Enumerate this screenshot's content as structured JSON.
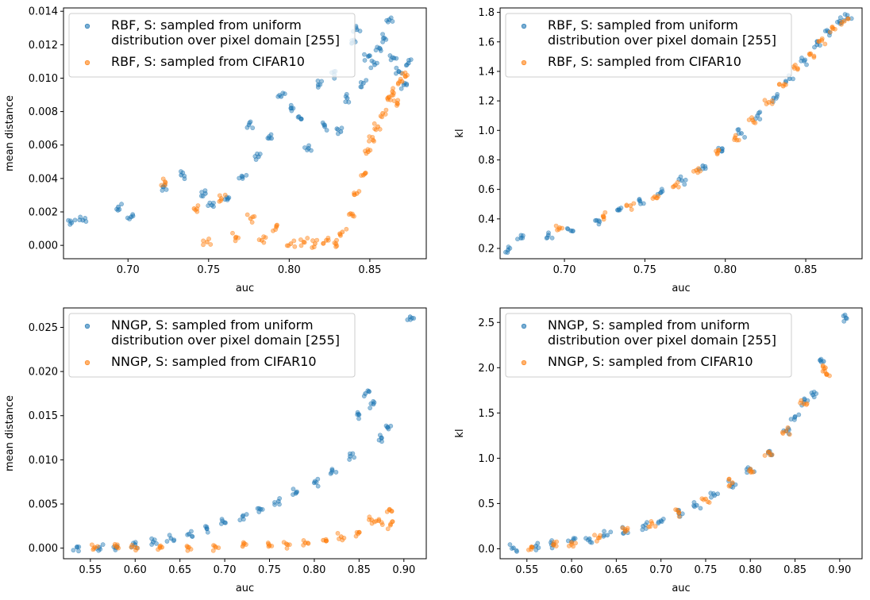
{
  "chart_data": [
    {
      "type": "scatter",
      "xlabel": "auc",
      "ylabel": "mean distance",
      "xlim": [
        0.66,
        0.885
      ],
      "ylim": [
        -0.0008,
        0.0142
      ],
      "x_ticks": [
        0.7,
        0.75,
        0.8,
        0.85
      ],
      "x_tick_labels": [
        "0.70",
        "0.75",
        "0.80",
        "0.85"
      ],
      "y_ticks": [
        0.0,
        0.002,
        0.004,
        0.006,
        0.008,
        0.01,
        0.012,
        0.014
      ],
      "y_tick_labels": [
        "0.000",
        "0.002",
        "0.004",
        "0.006",
        "0.008",
        "0.010",
        "0.012",
        "0.014"
      ],
      "legend_position": "top-left",
      "series": [
        {
          "name": "RBF, S: sampled from uniform\ndistribution over pixel domain [255]",
          "color": "#1f77b4",
          "points": [
            [
              0.665,
              0.00135
            ],
            [
              0.672,
              0.0015
            ],
            [
              0.694,
              0.0023
            ],
            [
              0.702,
              0.0017
            ],
            [
              0.722,
              0.0035
            ],
            [
              0.733,
              0.0042
            ],
            [
              0.748,
              0.0031
            ],
            [
              0.752,
              0.0024
            ],
            [
              0.762,
              0.0028
            ],
            [
              0.771,
              0.0041
            ],
            [
              0.775,
              0.0072
            ],
            [
              0.781,
              0.0053
            ],
            [
              0.789,
              0.0064
            ],
            [
              0.795,
              0.0089
            ],
            [
              0.801,
              0.0082
            ],
            [
              0.806,
              0.0077
            ],
            [
              0.812,
              0.0058
            ],
            [
              0.818,
              0.0096
            ],
            [
              0.822,
              0.0071
            ],
            [
              0.828,
              0.0102
            ],
            [
              0.832,
              0.0068
            ],
            [
              0.836,
              0.0088
            ],
            [
              0.839,
              0.0121
            ],
            [
              0.842,
              0.0129
            ],
            [
              0.846,
              0.0097
            ],
            [
              0.849,
              0.0113
            ],
            [
              0.853,
              0.0108
            ],
            [
              0.856,
              0.0118
            ],
            [
              0.859,
              0.0124
            ],
            [
              0.862,
              0.0135
            ],
            [
              0.865,
              0.0112
            ],
            [
              0.868,
              0.0104
            ],
            [
              0.871,
              0.0096
            ],
            [
              0.874,
              0.0109
            ]
          ]
        },
        {
          "name": "RBF, S: sampled from CIFAR10",
          "color": "#ff7f0e",
          "points": [
            [
              0.723,
              0.0038
            ],
            [
              0.741,
              0.0022
            ],
            [
              0.749,
              0.0002
            ],
            [
              0.758,
              0.0028
            ],
            [
              0.767,
              0.0005
            ],
            [
              0.776,
              0.0016
            ],
            [
              0.783,
              0.0003
            ],
            [
              0.792,
              0.0011
            ],
            [
              0.801,
              0.0001
            ],
            [
              0.809,
              0.0002
            ],
            [
              0.816,
              0.0001
            ],
            [
              0.823,
              0.0003
            ],
            [
              0.829,
              0.0001
            ],
            [
              0.833,
              0.0008
            ],
            [
              0.838,
              0.0019
            ],
            [
              0.842,
              0.0031
            ],
            [
              0.846,
              0.0042
            ],
            [
              0.849,
              0.0056
            ],
            [
              0.852,
              0.0063
            ],
            [
              0.855,
              0.0071
            ],
            [
              0.858,
              0.0079
            ],
            [
              0.861,
              0.0088
            ],
            [
              0.864,
              0.0092
            ],
            [
              0.867,
              0.0085
            ],
            [
              0.87,
              0.0098
            ],
            [
              0.872,
              0.0101
            ]
          ]
        }
      ]
    },
    {
      "type": "scatter",
      "xlabel": "auc",
      "ylabel": "kl",
      "xlim": [
        0.66,
        0.885
      ],
      "ylim": [
        0.13,
        1.83
      ],
      "x_ticks": [
        0.7,
        0.75,
        0.8,
        0.85
      ],
      "x_tick_labels": [
        "0.70",
        "0.75",
        "0.80",
        "0.85"
      ],
      "y_ticks": [
        0.2,
        0.4,
        0.6,
        0.8,
        1.0,
        1.2,
        1.4,
        1.6,
        1.8
      ],
      "y_tick_labels": [
        "0.2",
        "0.4",
        "0.6",
        "0.8",
        "1.0",
        "1.2",
        "1.4",
        "1.6",
        "1.8"
      ],
      "legend_position": "top-left",
      "series": [
        {
          "name": "RBF, S: sampled from uniform\ndistribution over pixel domain [255]",
          "color": "#1f77b4",
          "points": [
            [
              0.665,
              0.19
            ],
            [
              0.673,
              0.27
            ],
            [
              0.69,
              0.29
            ],
            [
              0.704,
              0.32
            ],
            [
              0.72,
              0.39
            ],
            [
              0.733,
              0.46
            ],
            [
              0.747,
              0.52
            ],
            [
              0.76,
              0.58
            ],
            [
              0.773,
              0.66
            ],
            [
              0.786,
              0.76
            ],
            [
              0.798,
              0.86
            ],
            [
              0.81,
              0.98
            ],
            [
              0.82,
              1.1
            ],
            [
              0.83,
              1.22
            ],
            [
              0.84,
              1.35
            ],
            [
              0.849,
              1.47
            ],
            [
              0.857,
              1.58
            ],
            [
              0.864,
              1.67
            ],
            [
              0.871,
              1.74
            ],
            [
              0.876,
              1.76
            ]
          ]
        },
        {
          "name": "RBF, S: sampled from CIFAR10",
          "color": "#ff7f0e",
          "points": [
            [
              0.697,
              0.34
            ],
            [
              0.724,
              0.42
            ],
            [
              0.741,
              0.49
            ],
            [
              0.756,
              0.55
            ],
            [
              0.769,
              0.63
            ],
            [
              0.782,
              0.73
            ],
            [
              0.795,
              0.84
            ],
            [
              0.806,
              0.95
            ],
            [
              0.817,
              1.07
            ],
            [
              0.827,
              1.19
            ],
            [
              0.836,
              1.3
            ],
            [
              0.845,
              1.42
            ],
            [
              0.853,
              1.52
            ],
            [
              0.86,
              1.61
            ],
            [
              0.867,
              1.69
            ],
            [
              0.874,
              1.74
            ]
          ]
        }
      ]
    },
    {
      "type": "scatter",
      "xlabel": "auc",
      "ylabel": "mean distance",
      "xlim": [
        0.52,
        0.925
      ],
      "ylim": [
        -0.0012,
        0.0272
      ],
      "x_ticks": [
        0.55,
        0.6,
        0.65,
        0.7,
        0.75,
        0.8,
        0.85,
        0.9
      ],
      "x_tick_labels": [
        "0.55",
        "0.60",
        "0.65",
        "0.70",
        "0.75",
        "0.80",
        "0.85",
        "0.90"
      ],
      "y_ticks": [
        0.0,
        0.005,
        0.01,
        0.015,
        0.02,
        0.025
      ],
      "y_tick_labels": [
        "0.000",
        "0.005",
        "0.010",
        "0.015",
        "0.020",
        "0.025"
      ],
      "legend_position": "top-left",
      "series": [
        {
          "name": "NNGP, S: sampled from uniform\ndistribution over pixel domain [255]",
          "color": "#1f77b4",
          "points": [
            [
              0.535,
              0.0001
            ],
            [
              0.56,
              0.0001
            ],
            [
              0.58,
              0.0002
            ],
            [
              0.6,
              0.0004
            ],
            [
              0.62,
              0.0007
            ],
            [
              0.64,
              0.0011
            ],
            [
              0.66,
              0.0016
            ],
            [
              0.68,
              0.0022
            ],
            [
              0.7,
              0.0029
            ],
            [
              0.72,
              0.0036
            ],
            [
              0.74,
              0.0044
            ],
            [
              0.76,
              0.0053
            ],
            [
              0.78,
              0.0063
            ],
            [
              0.8,
              0.0074
            ],
            [
              0.82,
              0.0088
            ],
            [
              0.84,
              0.0104
            ],
            [
              0.85,
              0.0151
            ],
            [
              0.857,
              0.0175
            ],
            [
              0.866,
              0.0163
            ],
            [
              0.875,
              0.0125
            ],
            [
              0.882,
              0.0137
            ],
            [
              0.907,
              0.0262
            ]
          ]
        },
        {
          "name": "NNGP, S: sampled from CIFAR10",
          "color": "#ff7f0e",
          "points": [
            [
              0.555,
              0.0001
            ],
            [
              0.58,
              0.0001
            ],
            [
              0.6,
              0.0001
            ],
            [
              0.63,
              0.0001
            ],
            [
              0.66,
              0.0001
            ],
            [
              0.69,
              0.0001
            ],
            [
              0.72,
              0.0002
            ],
            [
              0.75,
              0.0003
            ],
            [
              0.77,
              0.0004
            ],
            [
              0.79,
              0.0006
            ],
            [
              0.81,
              0.0009
            ],
            [
              0.83,
              0.0013
            ],
            [
              0.85,
              0.0018
            ],
            [
              0.864,
              0.0032
            ],
            [
              0.872,
              0.0031
            ],
            [
              0.884,
              0.0044
            ],
            [
              0.885,
              0.0026
            ]
          ]
        }
      ]
    },
    {
      "type": "scatter",
      "xlabel": "auc",
      "ylabel": "kl",
      "xlim": [
        0.52,
        0.925
      ],
      "ylim": [
        -0.11,
        2.66
      ],
      "x_ticks": [
        0.55,
        0.6,
        0.65,
        0.7,
        0.75,
        0.8,
        0.85,
        0.9
      ],
      "x_tick_labels": [
        "0.55",
        "0.60",
        "0.65",
        "0.70",
        "0.75",
        "0.80",
        "0.85",
        "0.90"
      ],
      "y_ticks": [
        0.0,
        0.5,
        1.0,
        1.5,
        2.0,
        2.5
      ],
      "y_tick_labels": [
        "0.0",
        "0.5",
        "1.0",
        "1.5",
        "2.0",
        "2.5"
      ],
      "legend_position": "top-left",
      "series": [
        {
          "name": "NNGP, S: sampled from uniform\ndistribution over pixel domain [255]",
          "color": "#1f77b4",
          "points": [
            [
              0.535,
              0.01
            ],
            [
              0.56,
              0.03
            ],
            [
              0.58,
              0.05
            ],
            [
              0.6,
              0.08
            ],
            [
              0.62,
              0.11
            ],
            [
              0.64,
              0.15
            ],
            [
              0.66,
              0.2
            ],
            [
              0.68,
              0.25
            ],
            [
              0.7,
              0.31
            ],
            [
              0.72,
              0.39
            ],
            [
              0.74,
              0.48
            ],
            [
              0.76,
              0.59
            ],
            [
              0.78,
              0.72
            ],
            [
              0.8,
              0.88
            ],
            [
              0.82,
              1.06
            ],
            [
              0.84,
              1.3
            ],
            [
              0.85,
              1.46
            ],
            [
              0.86,
              1.62
            ],
            [
              0.87,
              1.7
            ],
            [
              0.882,
              2.07
            ],
            [
              0.907,
              2.55
            ]
          ]
        },
        {
          "name": "NNGP, S: sampled from CIFAR10",
          "color": "#ff7f0e",
          "points": [
            [
              0.555,
              0.02
            ],
            [
              0.58,
              0.04
            ],
            [
              0.6,
              0.07
            ],
            [
              0.63,
              0.12
            ],
            [
              0.66,
              0.19
            ],
            [
              0.69,
              0.28
            ],
            [
              0.72,
              0.4
            ],
            [
              0.75,
              0.55
            ],
            [
              0.78,
              0.73
            ],
            [
              0.8,
              0.88
            ],
            [
              0.82,
              1.07
            ],
            [
              0.84,
              1.3
            ],
            [
              0.86,
              1.6
            ],
            [
              0.884,
              2.0
            ],
            [
              0.885,
              1.93
            ]
          ]
        }
      ]
    }
  ]
}
